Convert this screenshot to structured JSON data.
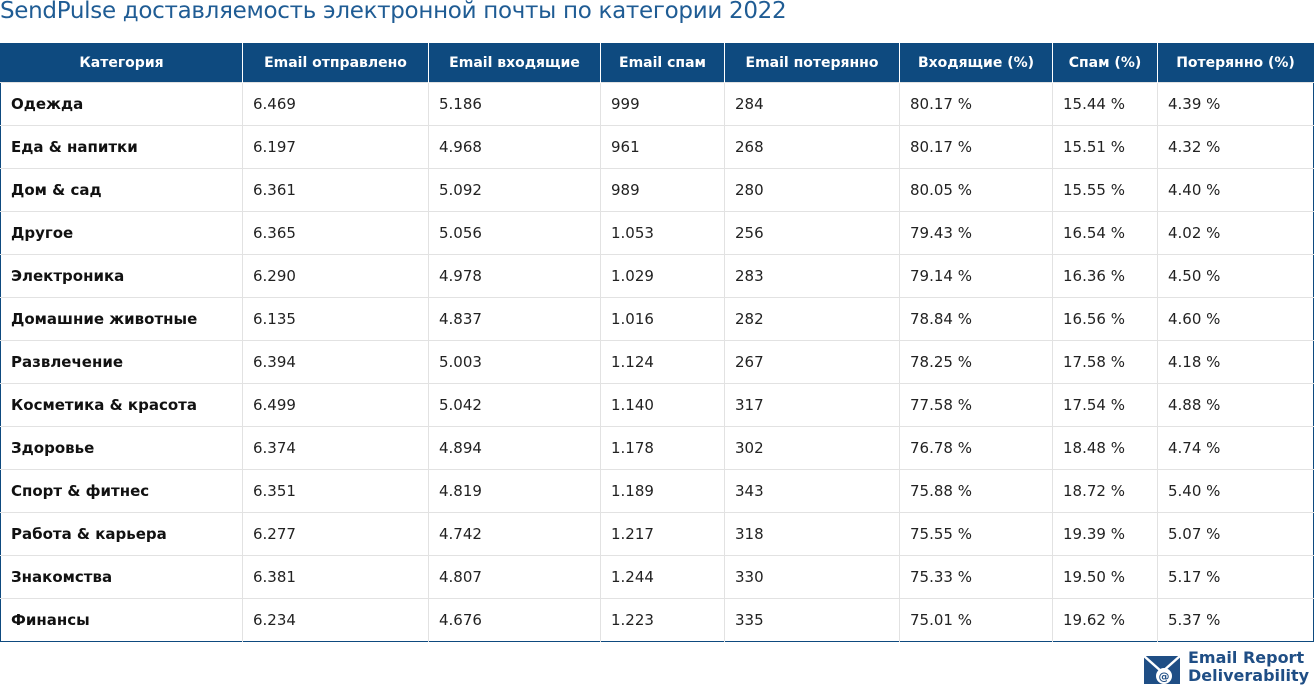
{
  "header": {
    "title": "SendPulse доставляемость электронной почты по категории 2022"
  },
  "table": {
    "columns": [
      "Категория",
      "Email отправлено",
      "Email входящие",
      "Email спам",
      "Email потерянно",
      "Входящие (%)",
      "Спам (%)",
      "Потерянно (%)"
    ],
    "rows": [
      [
        "Одежда",
        "6.469",
        "5.186",
        "999",
        "284",
        "80.17 %",
        "15.44 %",
        "4.39 %"
      ],
      [
        "Еда & напитки",
        "6.197",
        "4.968",
        "961",
        "268",
        "80.17 %",
        "15.51 %",
        "4.32 %"
      ],
      [
        "Дом & сад",
        "6.361",
        "5.092",
        "989",
        "280",
        "80.05 %",
        "15.55 %",
        "4.40 %"
      ],
      [
        "Другое",
        "6.365",
        "5.056",
        "1.053",
        "256",
        "79.43 %",
        "16.54 %",
        "4.02 %"
      ],
      [
        "Электроника",
        "6.290",
        "4.978",
        "1.029",
        "283",
        "79.14 %",
        "16.36 %",
        "4.50 %"
      ],
      [
        "Домашние животные",
        "6.135",
        "4.837",
        "1.016",
        "282",
        "78.84 %",
        "16.56 %",
        "4.60 %"
      ],
      [
        "Развлечение",
        "6.394",
        "5.003",
        "1.124",
        "267",
        "78.25 %",
        "17.58 %",
        "4.18 %"
      ],
      [
        "Косметика & красота",
        "6.499",
        "5.042",
        "1.140",
        "317",
        "77.58 %",
        "17.54 %",
        "4.88 %"
      ],
      [
        "Здоровье",
        "6.374",
        "4.894",
        "1.178",
        "302",
        "76.78 %",
        "18.48 %",
        "4.74 %"
      ],
      [
        "Спорт & фитнес",
        "6.351",
        "4.819",
        "1.189",
        "343",
        "75.88 %",
        "18.72 %",
        "5.40 %"
      ],
      [
        "Работа & карьера",
        "6.277",
        "4.742",
        "1.217",
        "318",
        "75.55 %",
        "19.39 %",
        "5.07 %"
      ],
      [
        "Знакомства",
        "6.381",
        "4.807",
        "1.244",
        "330",
        "75.33 %",
        "19.50 %",
        "5.17 %"
      ],
      [
        "Финансы",
        "6.234",
        "4.676",
        "1.223",
        "335",
        "75.01 %",
        "19.62 %",
        "5.37 %"
      ]
    ]
  },
  "logo": {
    "line1": "Email Report",
    "line2": "Deliverability"
  }
}
